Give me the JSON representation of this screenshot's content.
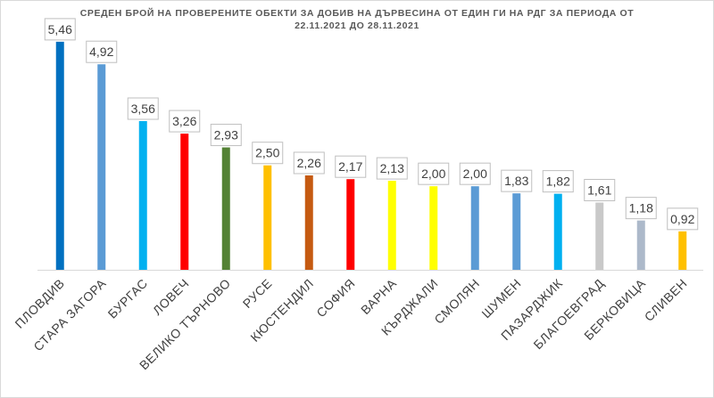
{
  "chart_data": {
    "type": "bar",
    "title_line1": "СРЕДЕН БРОЙ НА ПРОВЕРЕНИТЕ ОБЕКТИ ЗА ДОБИВ НА ДЪРВЕСИНА ОТ ЕДИН ГИ НА РДГ ЗА ПЕРИОДА ОТ",
    "title_line2": "22.11.2021 ДО 28.11.2021",
    "categories": [
      "ПЛОВДИВ",
      "СТАРА ЗАГОРА",
      "БУРГАС",
      "ЛОВЕЧ",
      "ВЕЛИКО ТЪРНОВО",
      "РУСЕ",
      "КЮСТЕНДИЛ",
      "СОФИЯ",
      "ВАРНА",
      "КЪРДЖАЛИ",
      "СМОЛЯН",
      "ШУМЕН",
      "ПАЗАРДЖИК",
      "БЛАГОЕВГРАД",
      "БЕРКОВИЦА",
      "СЛИВЕН"
    ],
    "values": [
      5.46,
      4.92,
      3.56,
      3.26,
      2.93,
      2.5,
      2.26,
      2.17,
      2.13,
      2.0,
      2.0,
      1.83,
      1.82,
      1.61,
      1.18,
      0.92
    ],
    "value_labels": [
      "5,46",
      "4,92",
      "3,56",
      "3,26",
      "2,93",
      "2,50",
      "2,26",
      "2,17",
      "2,13",
      "2,00",
      "2,00",
      "1,83",
      "1,82",
      "1,61",
      "1,18",
      "0,92"
    ],
    "colors": [
      "#0070c0",
      "#5b9bd5",
      "#00b0f0",
      "#ff0000",
      "#548235",
      "#ffc000",
      "#c55a11",
      "#ff0000",
      "#ffff00",
      "#ffff00",
      "#5b9bd5",
      "#5b9bd5",
      "#00b0f0",
      "#c9c9c9",
      "#acb9ca",
      "#ffc000"
    ],
    "ylim": [
      0,
      5.5
    ],
    "grid": false,
    "legend": "none"
  }
}
